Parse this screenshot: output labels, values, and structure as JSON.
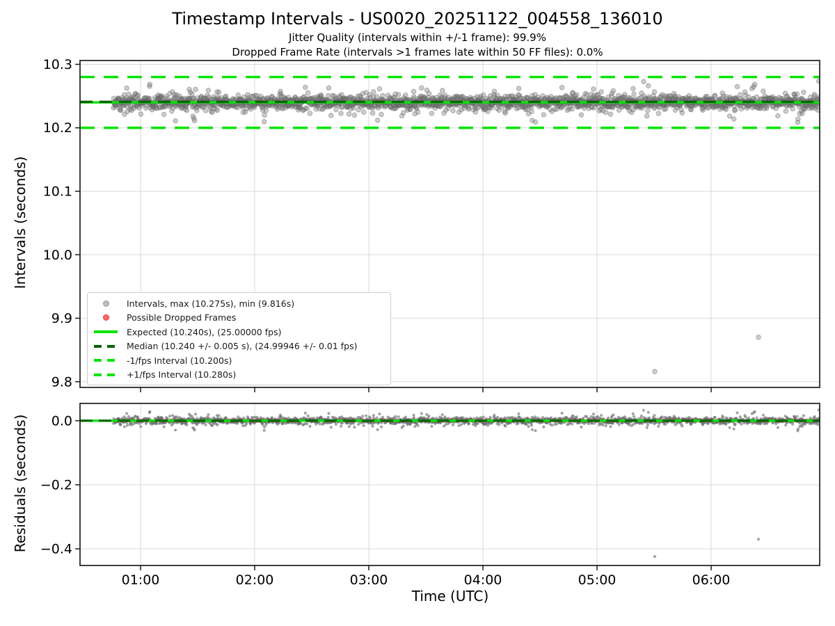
{
  "title": "Timestamp Intervals - US0020_20251122_004558_136010",
  "subtitle1": "Jitter Quality (intervals within +/-1 frame): 99.9%",
  "subtitle2": "Dropped Frame Rate (intervals >1 frames late within 50 FF files): 0.0%",
  "xlabel": "Time (UTC)",
  "chart_data": [
    {
      "type": "scatter",
      "panel": "intervals",
      "ylabel": "Intervals (seconds)",
      "ylim": [
        9.791,
        10.306
      ],
      "yticks": [
        {
          "value": 10.3,
          "label": "10.3"
        },
        {
          "value": 10.2,
          "label": "10.2"
        },
        {
          "value": 10.1,
          "label": "10.1"
        },
        {
          "value": 10.0,
          "label": "10.0"
        },
        {
          "value": 9.9,
          "label": "9.9"
        },
        {
          "value": 9.8,
          "label": "9.8"
        }
      ],
      "x_axis": {
        "label": "Time (UTC)",
        "xlim_hours": [
          0.4695,
          6.951
        ],
        "ticks": [
          {
            "hours": 1,
            "label": "01:00"
          },
          {
            "hours": 2,
            "label": "02:00"
          },
          {
            "hours": 3,
            "label": "03:00"
          },
          {
            "hours": 4,
            "label": "04:00"
          },
          {
            "hours": 5,
            "label": "05:00"
          },
          {
            "hours": 6,
            "label": "06:00"
          }
        ]
      },
      "grid": true,
      "ref_lines": [
        {
          "name": "plus-1fps",
          "value": 10.28,
          "style": "dashed",
          "color": "#00e500"
        },
        {
          "name": "minus-1fps",
          "value": 10.2,
          "style": "dashed",
          "color": "#00e500"
        },
        {
          "name": "expected",
          "value": 10.24,
          "style": "solid",
          "color": "#00e500"
        },
        {
          "name": "median",
          "value": 10.24,
          "style": "dashed",
          "color": "#006400"
        }
      ],
      "series": {
        "name": "Intervals",
        "color": "#8c8c8c",
        "point_count": 2100,
        "time_start_hours": 0.762,
        "time_end_hours": 6.948,
        "median_s": 10.24,
        "median_tolerance_s": 0.005,
        "max_s": 10.275,
        "min_s": 9.816,
        "expected_s": 10.24,
        "expected_fps": "25.00000",
        "median_fps": "24.99946",
        "median_fps_tolerance": "0.01"
      },
      "outliers": [
        {
          "hours": 5.506,
          "value_s": 9.816
        },
        {
          "hours": 6.415,
          "value_s": 9.87
        }
      ],
      "legend": [
        {
          "name": "intervals",
          "marker": "dot",
          "fill": "#bdbdbd",
          "edge": "#9a9a9a",
          "label": "Intervals, max (10.275s), min (9.816s)"
        },
        {
          "name": "dropped-frames",
          "marker": "dot",
          "fill": "#fa6b6b",
          "edge": "#e03a3a",
          "label": "Possible Dropped Frames"
        },
        {
          "name": "expected",
          "marker": "solid-line",
          "color": "#00e500",
          "label": "Expected (10.240s), (25.00000 fps)"
        },
        {
          "name": "median",
          "marker": "dashed-line",
          "color": "#006400",
          "label": "Median (10.240 +/- 0.005 s), (24.99946 +/- 0.01 fps)"
        },
        {
          "name": "minus-1fps",
          "marker": "dashed-line",
          "color": "#00e500",
          "label": "-1/fps Interval (10.200s)"
        },
        {
          "name": "plus-1fps",
          "marker": "dashed-line",
          "color": "#00e500",
          "label": "+1/fps Interval (10.280s)"
        }
      ]
    },
    {
      "type": "scatter",
      "panel": "residuals",
      "ylabel": "Residuals (seconds)",
      "ylim": [
        -0.452,
        0.054
      ],
      "yticks": [
        {
          "value": 0.0,
          "label": "0.0"
        },
        {
          "value": -0.2,
          "label": "−0.2"
        },
        {
          "value": -0.4,
          "label": "−0.4"
        }
      ],
      "grid": true,
      "zero_line": {
        "value": 0.0,
        "solid_color": "#00e500",
        "dash_color": "#006400"
      },
      "residual_reference_s": 10.24
    }
  ]
}
